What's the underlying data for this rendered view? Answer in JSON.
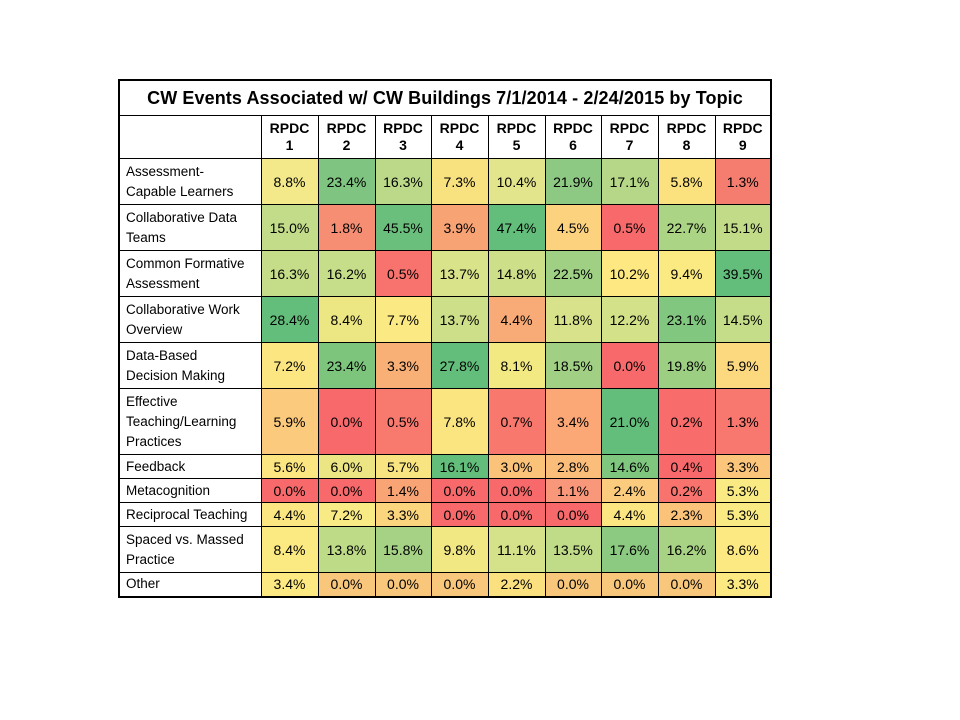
{
  "table": {
    "title": "CW Events Associated w/ CW Buildings  7/1/2014 - 2/24/2015 by Topic",
    "columns": [
      {
        "line1": "RPDC",
        "line2": "1"
      },
      {
        "line1": "RPDC",
        "line2": "2"
      },
      {
        "line1": "RPDC",
        "line2": "3"
      },
      {
        "line1": "RPDC",
        "line2": "4"
      },
      {
        "line1": "RPDC",
        "line2": "5"
      },
      {
        "line1": "RPDC",
        "line2": "6"
      },
      {
        "line1": "RPDC",
        "line2": "7"
      },
      {
        "line1": "RPDC",
        "line2": "8"
      },
      {
        "line1": "RPDC",
        "line2": "9"
      }
    ],
    "rows": [
      {
        "label_lines": [
          "Assessment-",
          "Capable Learners"
        ],
        "values": [
          "8.8%",
          "23.4%",
          "16.3%",
          "7.3%",
          "10.4%",
          "21.9%",
          "17.1%",
          "5.8%",
          "1.3%"
        ],
        "colors": [
          "#f3e98a",
          "#7fc480",
          "#bcd98a",
          "#f8e17f",
          "#e2e58b",
          "#8dc983",
          "#b6d788",
          "#fbe27f",
          "#f47d70"
        ]
      },
      {
        "label_lines": [
          "Collaborative  Data",
          "Teams"
        ],
        "values": [
          "15.0%",
          "1.8%",
          "45.5%",
          "3.9%",
          "47.4%",
          "4.5%",
          "0.5%",
          "22.7%",
          "15.1%"
        ],
        "colors": [
          "#c3dc8a",
          "#f58e73",
          "#6abf7c",
          "#f8a374",
          "#63be7b",
          "#fcd27f",
          "#f8696b",
          "#abd485",
          "#c2db88"
        ]
      },
      {
        "label_lines": [
          "Common Formative",
          "Assessment"
        ],
        "values": [
          "16.3%",
          "16.2%",
          "0.5%",
          "13.7%",
          "14.8%",
          "22.5%",
          "10.2%",
          "9.4%",
          "39.5%"
        ],
        "colors": [
          "#c5dd89",
          "#c6dd89",
          "#f8736d",
          "#d8e38a",
          "#cde089",
          "#9fd083",
          "#fde881",
          "#fbe982",
          "#63be7b"
        ]
      },
      {
        "label_lines": [
          "Collaborative  Work",
          "Overview"
        ],
        "values": [
          "28.4%",
          "8.4%",
          "7.7%",
          "13.7%",
          "4.4%",
          "11.8%",
          "12.2%",
          "23.1%",
          "14.5%"
        ],
        "colors": [
          "#63be7b",
          "#ece683",
          "#fbe983",
          "#cddf88",
          "#f8ab77",
          "#d7e28a",
          "#d3e189",
          "#82c77f",
          "#c5dd89"
        ]
      },
      {
        "label_lines": [
          "Data-Based",
          "Decision Making"
        ],
        "values": [
          "7.2%",
          "23.4%",
          "3.3%",
          "27.8%",
          "8.1%",
          "18.5%",
          "0.0%",
          "19.8%",
          "5.9%"
        ],
        "colors": [
          "#fbe681",
          "#7dc57d",
          "#f8b076",
          "#63be7b",
          "#f3e983",
          "#a1d084",
          "#f8696b",
          "#9dcf83",
          "#fcd87f"
        ]
      },
      {
        "label_lines": [
          "Effective",
          "Teaching/Learning",
          "Practices"
        ],
        "values": [
          "5.9%",
          "0.0%",
          "0.5%",
          "7.8%",
          "0.7%",
          "3.4%",
          "21.0%",
          "0.2%",
          "1.3%"
        ],
        "colors": [
          "#fbca7c",
          "#f8696b",
          "#f87a6f",
          "#fae580",
          "#f8786e",
          "#fba776",
          "#63be7b",
          "#f86d6c",
          "#f8776e"
        ]
      },
      {
        "label_lines": [
          "Feedback"
        ],
        "values": [
          "5.6%",
          "6.0%",
          "5.7%",
          "16.1%",
          "3.0%",
          "2.8%",
          "14.6%",
          "0.4%",
          "3.3%"
        ],
        "colors": [
          "#fbe681",
          "#ece583",
          "#f8e581",
          "#63be7b",
          "#fbc37a",
          "#fbbd7a",
          "#7fc67e",
          "#f8696b",
          "#fbc57b"
        ]
      },
      {
        "label_lines": [
          "Metacognition"
        ],
        "values": [
          "0.0%",
          "0.0%",
          "1.4%",
          "0.0%",
          "0.0%",
          "1.1%",
          "2.4%",
          "0.2%",
          "5.3%"
        ],
        "colors": [
          "#f8696b",
          "#f8696b",
          "#f9a474",
          "#f8696b",
          "#f8696b",
          "#f9977a",
          "#fccc7e",
          "#f8736d",
          "#f9ea84"
        ]
      },
      {
        "label_lines": [
          "Reciprocal Teaching"
        ],
        "values": [
          "4.4%",
          "7.2%",
          "3.3%",
          "0.0%",
          "0.0%",
          "0.0%",
          "4.4%",
          "2.3%",
          "5.3%"
        ],
        "colors": [
          "#fbe681",
          "#f8ea84",
          "#fbd47e",
          "#f8696b",
          "#f8696b",
          "#f8696b",
          "#fbe681",
          "#fbc37a",
          "#faea84"
        ]
      },
      {
        "label_lines": [
          "Spaced vs. Massed",
          "Practice"
        ],
        "values": [
          "8.4%",
          "13.8%",
          "15.8%",
          "9.8%",
          "11.1%",
          "13.5%",
          "17.6%",
          "16.2%",
          "8.6%"
        ],
        "colors": [
          "#fbe982",
          "#bedb88",
          "#a6d285",
          "#f1e883",
          "#d6e28a",
          "#c1dc89",
          "#8dca81",
          "#a8d385",
          "#fde982"
        ]
      },
      {
        "label_lines": [
          "Other"
        ],
        "values": [
          "3.4%",
          "0.0%",
          "0.0%",
          "0.0%",
          "2.2%",
          "0.0%",
          "0.0%",
          "0.0%",
          "3.3%"
        ],
        "colors": [
          "#fde982",
          "#f8c77c",
          "#f8c77c",
          "#f8c77c",
          "#fbe080",
          "#f8c77c",
          "#f8c77c",
          "#f8c77c",
          "#fde982"
        ]
      }
    ]
  }
}
